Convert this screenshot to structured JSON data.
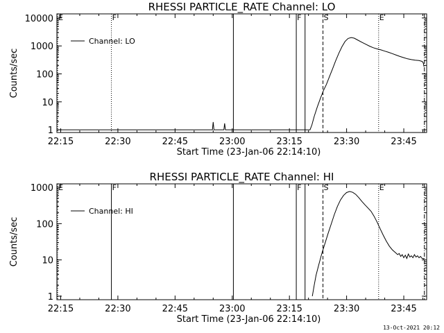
{
  "footer_date": "13-Oct-2021 20:12",
  "chart_data": [
    {
      "type": "line",
      "title": "RHESSI PARTICLE_RATE Channel: LO",
      "xlabel": "Start Time (23-Jan-06 22:14:10)",
      "ylabel": "Counts/sec",
      "yscale": "log",
      "xlim": [
        0,
        97
      ],
      "ylim": [
        0.8,
        14000
      ],
      "xticks": [
        {
          "t": 1,
          "label": "22:15"
        },
        {
          "t": 16,
          "label": "22:30"
        },
        {
          "t": 31,
          "label": "22:45"
        },
        {
          "t": 46,
          "label": "23:00"
        },
        {
          "t": 61,
          "label": "23:15"
        },
        {
          "t": 76,
          "label": "23:30"
        },
        {
          "t": 91,
          "label": "23:45"
        }
      ],
      "yticks": [
        {
          "v": 1,
          "label": "1"
        },
        {
          "v": 10,
          "label": "10"
        },
        {
          "v": 100,
          "label": "100"
        },
        {
          "v": 1000,
          "label": "1000"
        },
        {
          "v": 10000,
          "label": "10000"
        }
      ],
      "legend": {
        "position": "top-left",
        "label": "Channel: LO"
      },
      "markers": [
        {
          "t": 0.2,
          "style": "dotted",
          "label": "E"
        },
        {
          "t": 14.3,
          "style": "dotted",
          "label": "F"
        },
        {
          "t": 46.3,
          "style": "solid",
          "label": ""
        },
        {
          "t": 62.8,
          "style": "solid",
          "label": "F"
        },
        {
          "t": 65.1,
          "style": "solid",
          "label": ""
        },
        {
          "t": 69.8,
          "style": "dashed",
          "label": "S"
        },
        {
          "t": 84.4,
          "style": "dotted",
          "label": "E"
        },
        {
          "t": 96.4,
          "style": "dashdot",
          "label": ""
        }
      ],
      "series": [
        {
          "points": [
            [
              0.2,
              1
            ],
            [
              40.8,
              1
            ],
            [
              41.0,
              1.9
            ],
            [
              41.2,
              1
            ],
            [
              43.8,
              1
            ],
            [
              44.0,
              1.7
            ],
            [
              44.2,
              1
            ],
            [
              46.3,
              1
            ],
            [
              66.4,
              1
            ],
            [
              66.9,
              1.5
            ],
            [
              67.5,
              3
            ],
            [
              68.3,
              6.5
            ],
            [
              69.1,
              13
            ],
            [
              69.9,
              25
            ],
            [
              70.7,
              42
            ],
            [
              71.5,
              80
            ],
            [
              72.3,
              150
            ],
            [
              73.1,
              290
            ],
            [
              74.0,
              560
            ],
            [
              74.8,
              950
            ],
            [
              75.6,
              1450
            ],
            [
              76.4,
              1850
            ],
            [
              77.2,
              2000
            ],
            [
              78.0,
              1900
            ],
            [
              79.0,
              1600
            ],
            [
              80.0,
              1350
            ],
            [
              81.0,
              1150
            ],
            [
              82.0,
              980
            ],
            [
              83.0,
              860
            ],
            [
              84.0,
              780
            ],
            [
              85.0,
              720
            ],
            [
              86.0,
              650
            ],
            [
              87.0,
              590
            ],
            [
              88.0,
              530
            ],
            [
              89.0,
              470
            ],
            [
              90.0,
              420
            ],
            [
              91.0,
              380
            ],
            [
              92.0,
              345
            ],
            [
              93.0,
              325
            ],
            [
              94.0,
              310
            ],
            [
              95.0,
              300
            ],
            [
              95.8,
              280
            ],
            [
              96.1,
              250
            ],
            [
              96.3,
              180
            ]
          ]
        }
      ]
    },
    {
      "type": "line",
      "title": "RHESSI PARTICLE_RATE Channel: HI",
      "xlabel": "Start Time (23-Jan-06 22:14:10)",
      "ylabel": "Counts/sec",
      "yscale": "log",
      "xlim": [
        0,
        97
      ],
      "ylim": [
        0.8,
        1250
      ],
      "xticks": [
        {
          "t": 1,
          "label": "22:15"
        },
        {
          "t": 16,
          "label": "22:30"
        },
        {
          "t": 31,
          "label": "22:45"
        },
        {
          "t": 46,
          "label": "23:00"
        },
        {
          "t": 61,
          "label": "23:15"
        },
        {
          "t": 76,
          "label": "23:30"
        },
        {
          "t": 91,
          "label": "23:45"
        }
      ],
      "yticks": [
        {
          "v": 1,
          "label": "1"
        },
        {
          "v": 10,
          "label": "10"
        },
        {
          "v": 100,
          "label": "100"
        },
        {
          "v": 1000,
          "label": "1000"
        }
      ],
      "legend": {
        "position": "top-left",
        "label": "Channel: HI"
      },
      "markers": [
        {
          "t": 0.2,
          "style": "dotted",
          "label": "E"
        },
        {
          "t": 14.3,
          "style": "solid",
          "label": "F"
        },
        {
          "t": 46.3,
          "style": "solid",
          "label": ""
        },
        {
          "t": 62.8,
          "style": "solid",
          "label": "F"
        },
        {
          "t": 65.1,
          "style": "solid",
          "label": ""
        },
        {
          "t": 69.8,
          "style": "dashed",
          "label": "S"
        },
        {
          "t": 84.4,
          "style": "dotted",
          "label": "E"
        },
        {
          "t": 96.4,
          "style": "dashdot",
          "label": ""
        }
      ],
      "series": [
        {
          "points": [
            [
              67.0,
              1
            ],
            [
              67.5,
              2
            ],
            [
              68.0,
              3.8
            ],
            [
              68.8,
              8
            ],
            [
              69.5,
              15
            ],
            [
              70.3,
              28
            ],
            [
              71.1,
              52
            ],
            [
              72.0,
              100
            ],
            [
              72.8,
              180
            ],
            [
              73.6,
              300
            ],
            [
              74.4,
              450
            ],
            [
              75.2,
              600
            ],
            [
              76.0,
              720
            ],
            [
              76.8,
              770
            ],
            [
              77.6,
              730
            ],
            [
              78.4,
              640
            ],
            [
              79.2,
              520
            ],
            [
              80.0,
              410
            ],
            [
              80.8,
              330
            ],
            [
              81.6,
              270
            ],
            [
              82.4,
              220
            ],
            [
              83.2,
              160
            ],
            [
              84.0,
              110
            ],
            [
              84.8,
              72
            ],
            [
              85.6,
              48
            ],
            [
              86.4,
              33
            ],
            [
              87.2,
              24
            ],
            [
              88.0,
              19
            ],
            [
              88.8,
              16
            ],
            [
              89.4,
              14
            ],
            [
              89.8,
              15
            ],
            [
              90.2,
              12.5
            ],
            [
              90.6,
              14
            ],
            [
              91.0,
              11.5
            ],
            [
              91.4,
              13.5
            ],
            [
              91.8,
              11
            ],
            [
              92.2,
              14.5
            ],
            [
              92.6,
              12
            ],
            [
              93.0,
              13
            ],
            [
              93.4,
              11.5
            ],
            [
              93.8,
              14
            ],
            [
              94.2,
              12
            ],
            [
              94.6,
              13
            ],
            [
              95.0,
              11.5
            ],
            [
              95.4,
              12.5
            ],
            [
              95.8,
              11
            ],
            [
              96.1,
              11
            ],
            [
              96.3,
              10.3
            ]
          ]
        }
      ]
    }
  ]
}
